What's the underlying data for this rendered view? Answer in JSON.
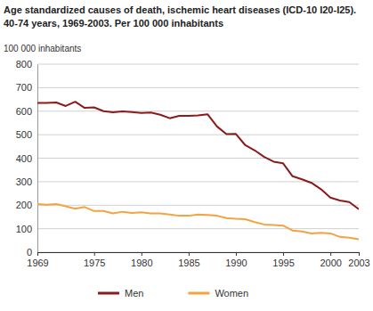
{
  "chart_data": {
    "type": "line",
    "title": "Age standardized causes of death, ischemic heart diseases (ICD-10 I20-I25). 40-74 years, 1969-2003. Per 100 000 inhabitants",
    "y_label": "100 000 inhabitants",
    "x": [
      1969,
      1970,
      1971,
      1972,
      1973,
      1974,
      1975,
      1976,
      1977,
      1978,
      1979,
      1980,
      1981,
      1982,
      1983,
      1984,
      1985,
      1986,
      1987,
      1988,
      1989,
      1990,
      1991,
      1992,
      1993,
      1994,
      1995,
      1996,
      1997,
      1998,
      1999,
      2000,
      2001,
      2002,
      2003
    ],
    "series": [
      {
        "name": "Men",
        "color": "#8c1a1a",
        "values": [
          635,
          635,
          637,
          622,
          640,
          614,
          616,
          600,
          595,
          599,
          596,
          592,
          594,
          585,
          570,
          580,
          580,
          582,
          587,
          535,
          502,
          503,
          455,
          433,
          405,
          385,
          378,
          323,
          310,
          295,
          268,
          232,
          220,
          213,
          183
        ]
      },
      {
        "name": "Women",
        "color": "#f4a340",
        "values": [
          205,
          202,
          205,
          195,
          185,
          192,
          175,
          175,
          165,
          172,
          167,
          170,
          165,
          165,
          160,
          155,
          155,
          160,
          158,
          155,
          145,
          142,
          140,
          128,
          118,
          116,
          113,
          92,
          88,
          80,
          82,
          80,
          65,
          62,
          55
        ]
      }
    ],
    "xlim": [
      1969,
      2003
    ],
    "xticks": [
      1969,
      1975,
      1980,
      1985,
      1990,
      1995,
      2000,
      2003
    ],
    "ylim": [
      0,
      800
    ],
    "yticks": [
      0,
      100,
      200,
      300,
      400,
      500,
      600,
      700,
      800
    ],
    "grid": true,
    "legend": "bottom"
  }
}
